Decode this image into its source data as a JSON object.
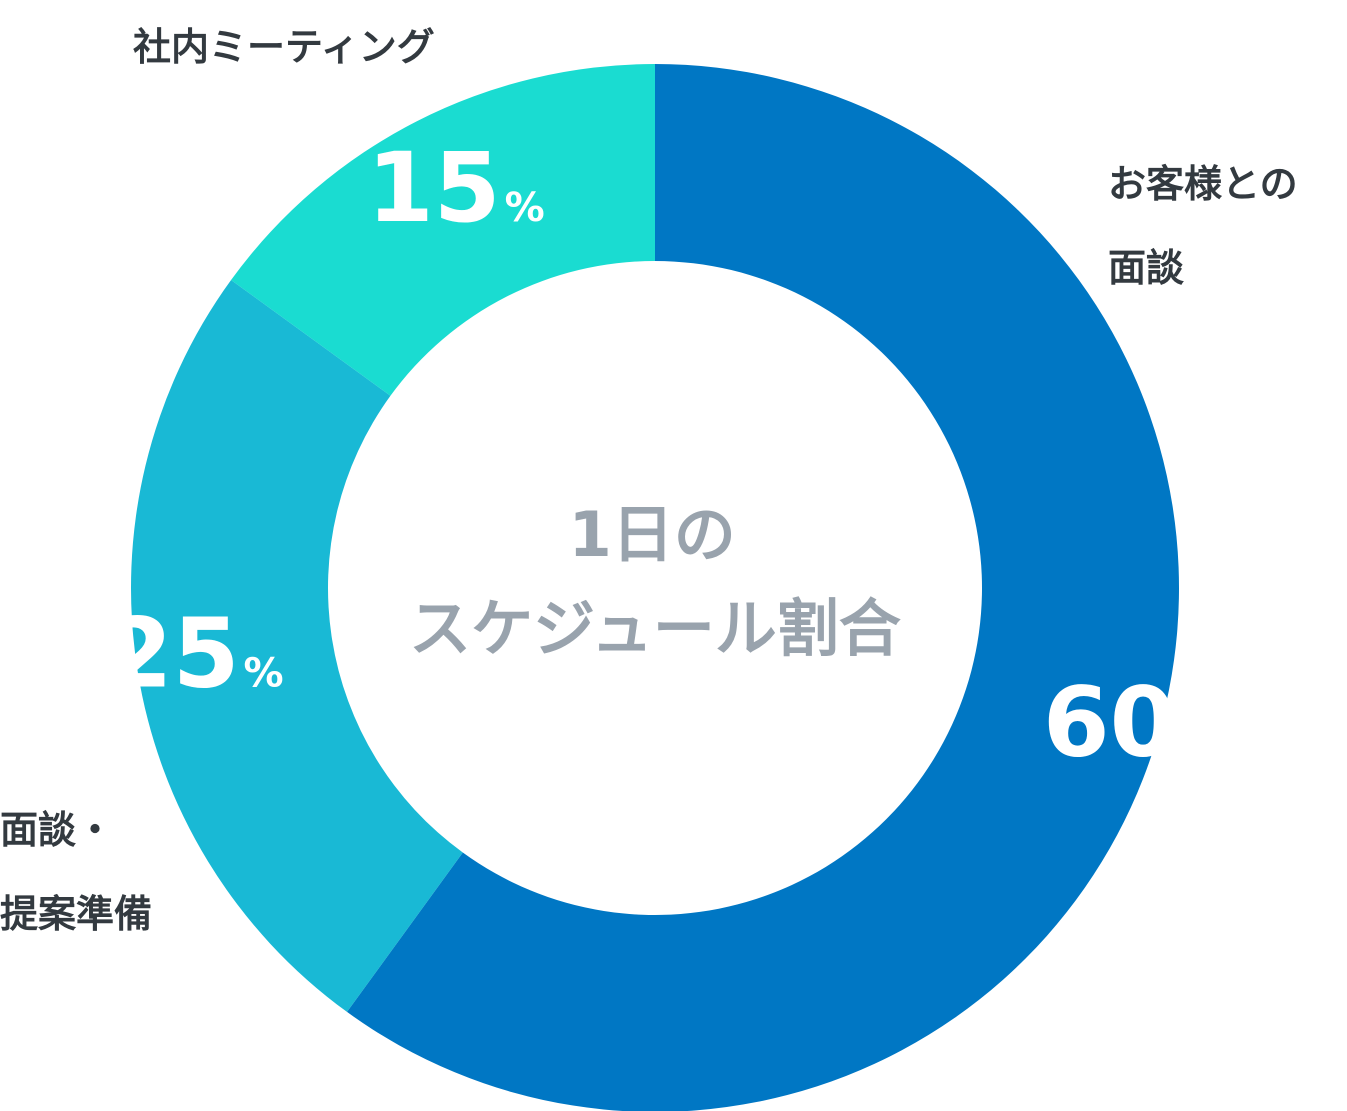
{
  "chart_data": {
    "type": "pie",
    "variant": "donut",
    "title_lines": [
      "1日の",
      "スケジュール割合"
    ],
    "value_suffix": "%",
    "slices": [
      {
        "label_lines": [
          "お客様との",
          "面談"
        ],
        "value": 60,
        "color": "#0077c4"
      },
      {
        "label_lines": [
          "面談・",
          "提案準備"
        ],
        "value": 25,
        "color": "#19b9d5"
      },
      {
        "label_lines": [
          "社内ミーティング"
        ],
        "value": 15,
        "color": "#1adcd1"
      }
    ]
  }
}
